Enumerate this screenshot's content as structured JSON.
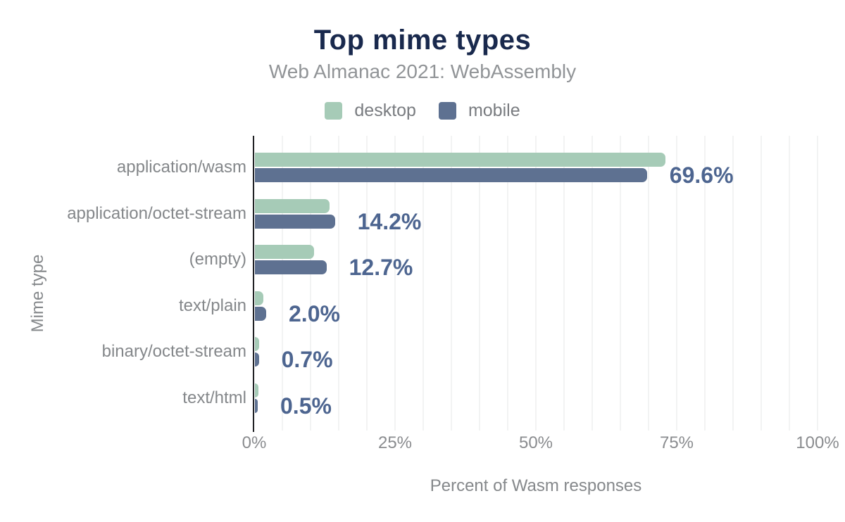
{
  "title": "Top mime types",
  "subtitle": "Web Almanac 2021: WebAssembly",
  "legend": {
    "items": [
      {
        "label": "desktop",
        "color": "#a6cbb7"
      },
      {
        "label": "mobile",
        "color": "#5e7191"
      }
    ]
  },
  "y_axis": {
    "title": "Mime type"
  },
  "x_axis": {
    "title": "Percent of Wasm responses",
    "ticks": [
      "0%",
      "25%",
      "50%",
      "75%",
      "100%"
    ]
  },
  "chart_data": {
    "type": "bar",
    "orientation": "horizontal",
    "title": "Top mime types",
    "subtitle": "Web Almanac 2021: WebAssembly",
    "xlabel": "Percent of Wasm responses",
    "ylabel": "Mime type",
    "xlim": [
      0,
      100
    ],
    "x_tick_labels": [
      "0%",
      "25%",
      "50%",
      "75%",
      "100%"
    ],
    "grid": "vertical gridlines every 5%",
    "legend_position": "top",
    "categories": [
      "application/wasm",
      "application/octet-stream",
      "(empty)",
      "text/plain",
      "binary/octet-stream",
      "text/html"
    ],
    "series": [
      {
        "name": "desktop",
        "color": "#a6cbb7",
        "values": [
          72.9,
          13.2,
          10.5,
          1.5,
          0.8,
          0.6
        ]
      },
      {
        "name": "mobile",
        "color": "#5e7191",
        "values": [
          69.6,
          14.2,
          12.7,
          2.0,
          0.7,
          0.5
        ]
      }
    ],
    "value_labels": {
      "labeled_series": "mobile",
      "texts": [
        "69.6%",
        "14.2%",
        "12.7%",
        "2.0%",
        "0.7%",
        "0.5%"
      ]
    }
  },
  "colors": {
    "title": "#19294d",
    "subtitle": "#919497",
    "axis_text": "#85888b",
    "category_text": "#84878a",
    "value_label": "#4d6590",
    "axis_line": "#202124",
    "gridline": "#f2f3f3",
    "background": "#ffffff"
  }
}
